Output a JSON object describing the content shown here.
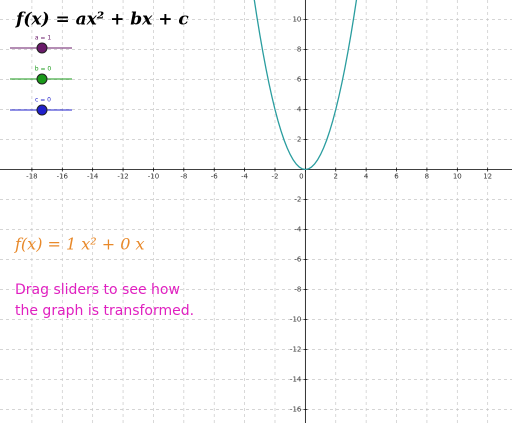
{
  "chart_data": {
    "type": "line",
    "title": "f(x) = ax² + bx + c",
    "x": [
      -3.4,
      -3.2,
      -3,
      -2.8,
      -2.6,
      -2.4,
      -2.2,
      -2,
      -1.8,
      -1.6,
      -1.4,
      -1.2,
      -1,
      -0.8,
      -0.6,
      -0.4,
      -0.2,
      0,
      0.2,
      0.4,
      0.6,
      0.8,
      1,
      1.2,
      1.4,
      1.6,
      1.8,
      2,
      2.2,
      2.4,
      2.6,
      2.8,
      3,
      3.2,
      3.4
    ],
    "series": [
      {
        "color": "#2a9d9f",
        "values": [
          11.56,
          10.24,
          9,
          7.84,
          6.76,
          5.76,
          4.84,
          4,
          3.24,
          2.56,
          1.96,
          1.44,
          1,
          0.64,
          0.36,
          0.16,
          0.04,
          0,
          0.04,
          0.16,
          0.36,
          0.64,
          1,
          1.44,
          1.96,
          2.56,
          3.24,
          4,
          4.84,
          5.76,
          6.76,
          7.84,
          9,
          10.24,
          11.56
        ]
      }
    ],
    "xlim": [
      -20.1,
      13.6
    ],
    "ylim": [
      -16.9,
      11.3
    ],
    "xticks": [
      -18,
      -16,
      -14,
      -12,
      -10,
      -8,
      -6,
      -4,
      -2,
      0,
      2,
      4,
      6,
      8,
      10,
      12
    ],
    "yticks": [
      -16,
      -14,
      -12,
      -10,
      -8,
      -6,
      -4,
      -2,
      2,
      4,
      6,
      8,
      10
    ],
    "grid": true,
    "sliders": [
      {
        "label": "a = 1",
        "color": "#6a1b6a"
      },
      {
        "label": "b = 0",
        "color": "#1a9a1a"
      },
      {
        "label": "c = 0",
        "color": "#2020cc"
      }
    ],
    "formula": "f(x) = 1 x² + 0 x",
    "note": [
      "Drag sliders to see how",
      "the graph is transformed."
    ]
  }
}
